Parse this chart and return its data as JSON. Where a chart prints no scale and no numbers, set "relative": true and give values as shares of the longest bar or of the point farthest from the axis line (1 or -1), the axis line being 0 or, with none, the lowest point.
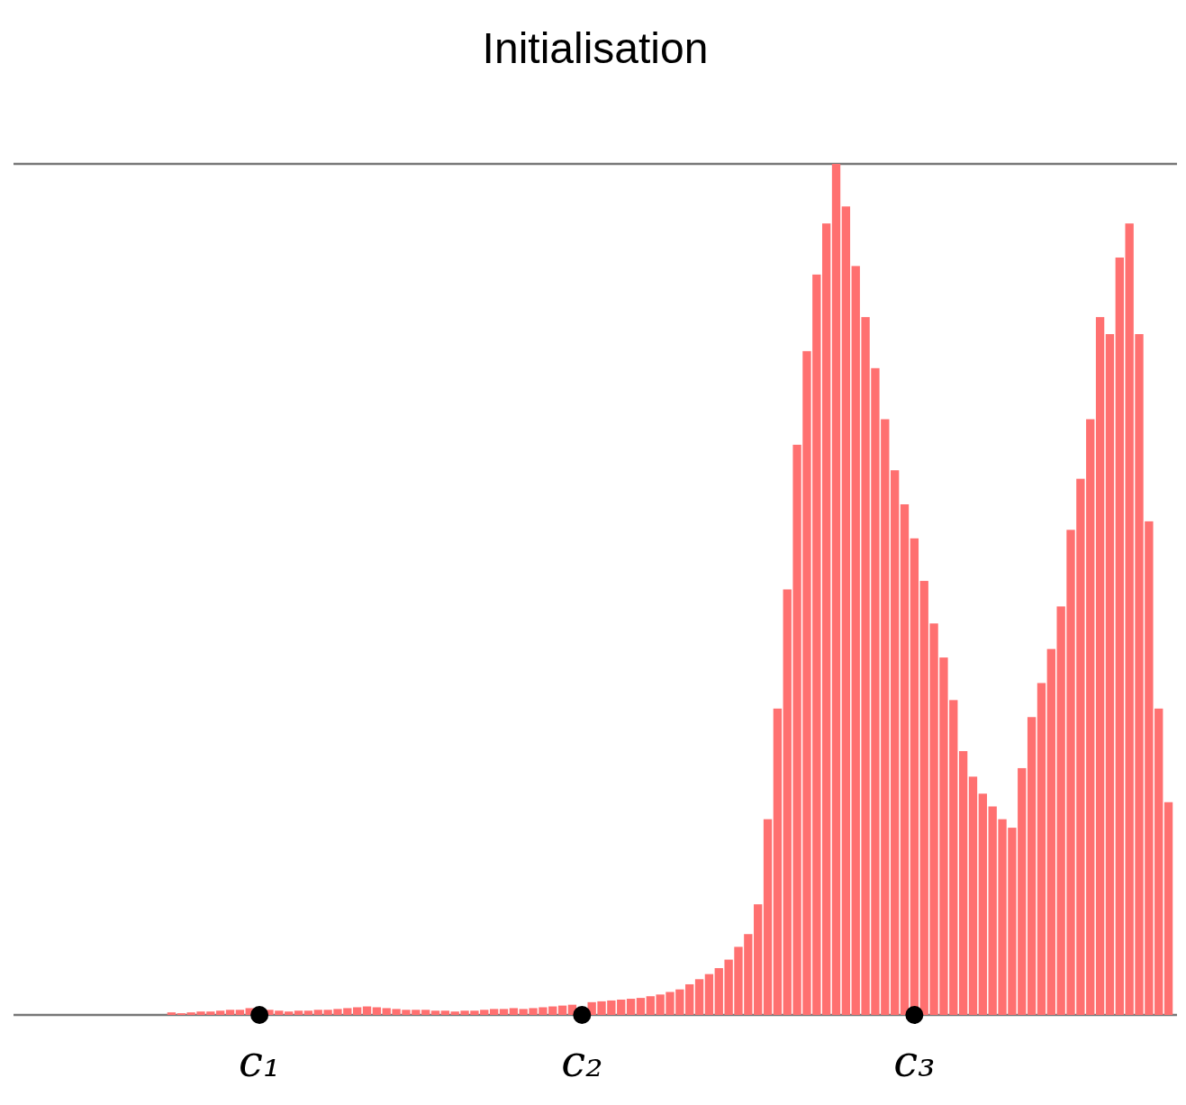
{
  "chart_data": {
    "type": "bar",
    "title": "Initialisation",
    "relative": true,
    "marker": "circle",
    "categories": [
      null,
      null,
      null,
      null,
      null,
      null,
      null,
      null,
      null,
      "c₁",
      null,
      null,
      null,
      null,
      null,
      null,
      null,
      null,
      null,
      null,
      null,
      null,
      null,
      null,
      null,
      null,
      null,
      null,
      null,
      null,
      null,
      null,
      null,
      null,
      null,
      null,
      null,
      null,
      null,
      null,
      null,
      null,
      "c₂",
      null,
      null,
      null,
      null,
      null,
      null,
      null,
      null,
      null,
      null,
      null,
      null,
      null,
      null,
      null,
      null,
      null,
      null,
      null,
      null,
      null,
      null,
      null,
      null,
      null,
      null,
      null,
      null,
      null,
      null,
      null,
      null,
      null,
      "c₃",
      null,
      null,
      null,
      null,
      null,
      null,
      null,
      null,
      null,
      null,
      null,
      null,
      null,
      null,
      null,
      null,
      null,
      null,
      null,
      null,
      null,
      null,
      null,
      null,
      null,
      null
    ],
    "series": [
      {
        "color": "#ff7070",
        "values": [
          0.003,
          0.002,
          0.003,
          0.004,
          0.004,
          0.005,
          0.006,
          0.006,
          0.008,
          null,
          0.006,
          0.005,
          0.004,
          0.005,
          0.005,
          0.006,
          0.006,
          0.007,
          0.008,
          0.009,
          0.01,
          0.009,
          0.008,
          0.007,
          0.006,
          0.006,
          0.006,
          0.005,
          0.005,
          0.004,
          0.005,
          0.005,
          0.006,
          0.007,
          0.007,
          0.008,
          0.007,
          0.008,
          0.009,
          0.01,
          0.011,
          0.012,
          null,
          0.015,
          0.016,
          0.017,
          0.018,
          0.019,
          0.02,
          0.022,
          0.024,
          0.027,
          0.03,
          0.036,
          0.042,
          0.048,
          0.055,
          0.065,
          0.08,
          0.095,
          0.13,
          0.23,
          0.36,
          0.5,
          0.67,
          0.78,
          0.87,
          0.93,
          1,
          0.95,
          0.88,
          0.82,
          0.76,
          0.7,
          0.64,
          0.6,
          0.56,
          0.51,
          0.46,
          0.42,
          0.37,
          0.31,
          0.28,
          0.26,
          0.245,
          0.23,
          0.22,
          0.29,
          0.35,
          0.39,
          0.43,
          0.48,
          0.57,
          0.63,
          0.7,
          0.82,
          0.8,
          0.89,
          0.93,
          0.8,
          0.58,
          0.36,
          0.25
        ]
      },
      {
        "type": "scatter",
        "color": "#000000",
        "x": [
          "c₁",
          "c₂",
          "c₃"
        ],
        "values": [
          0,
          0,
          0
        ]
      }
    ]
  }
}
